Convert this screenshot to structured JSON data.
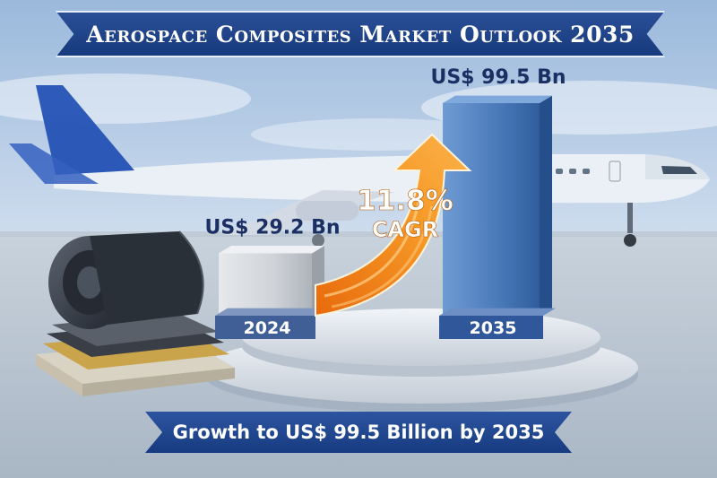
{
  "title": "Aerospace Composites Market Outlook 2035",
  "footer": "Growth to US$ 99.5 Billion by 2035",
  "cagr": {
    "value": "11.8%",
    "label": "CAGR"
  },
  "colors": {
    "banner": "#1f4590",
    "bar_2024": "#c9ccd1",
    "bar_2035": "#4878b8",
    "arrow": "#f28a1c",
    "value_text": "#1b2f63"
  },
  "chart_data": {
    "type": "bar",
    "categories": [
      "2024",
      "2035"
    ],
    "values": [
      29.2,
      99.5
    ],
    "value_labels": [
      "US$ 29.2 Bn",
      "US$ 99.5 Bn"
    ],
    "unit": "US$ Bn",
    "ylim": [
      0,
      110
    ],
    "grid": false,
    "legend": "none"
  }
}
